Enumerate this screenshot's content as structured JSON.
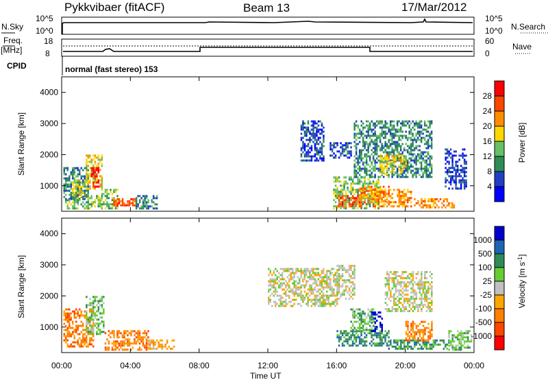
{
  "header": {
    "radar": "Pykkvibaer (fitACF)",
    "beam": "Beam 13",
    "date": "17/Mar/2012"
  },
  "top_panels": {
    "nsky_label": "N.Sky",
    "nsearch_label": "N.Search",
    "nsky_ticks": [
      "10^5",
      "10^0"
    ],
    "nsearch_ticks": [
      "10^5",
      "10^0"
    ],
    "freq_label": "Freq.",
    "freq_unit": "[MHz]",
    "freq_ticks": [
      "18",
      "8"
    ],
    "nave_label": "Nave",
    "nave_ticks": [
      "60",
      "0"
    ],
    "cpid_label": "CPID",
    "cpid_text": "normal (fast stereo) 153"
  },
  "chart_data": [
    {
      "type": "heatmap",
      "name": "power",
      "ylabel": "Slant Range [km]",
      "xlabel": "",
      "x_ticks": [
        "00:00",
        "04:00",
        "08:00",
        "12:00",
        "16:00",
        "20:00",
        "00:00"
      ],
      "xlim_hours": [
        0,
        24
      ],
      "y_ticks": [
        "1000",
        "2000",
        "3000",
        "4000"
      ],
      "ylim": [
        180,
        4500
      ],
      "colorbar": {
        "label": "Power [dB]",
        "ticks": [
          "4",
          "8",
          "12",
          "16",
          "20",
          "24",
          "28"
        ],
        "colors": [
          "#0000ff",
          "#2040c0",
          "#2e8b57",
          "#66c066",
          "#ffd700",
          "#ff8c00",
          "#ff4500",
          "#ff0000"
        ]
      },
      "regions": [
        {
          "t": [
            0.1,
            1.5
          ],
          "r": [
            600,
            1600
          ],
          "level": 2
        },
        {
          "t": [
            0.6,
            1.3
          ],
          "r": [
            700,
            1200
          ],
          "level": 4
        },
        {
          "t": [
            0.2,
            2.3
          ],
          "r": [
            250,
            700
          ],
          "level": 3
        },
        {
          "t": [
            1.4,
            2.3
          ],
          "r": [
            900,
            2000
          ],
          "level": 4
        },
        {
          "t": [
            1.7,
            2.1
          ],
          "r": [
            1000,
            1600
          ],
          "level": 7
        },
        {
          "t": [
            2.3,
            3.2
          ],
          "r": [
            300,
            900
          ],
          "level": 3
        },
        {
          "t": [
            3.0,
            4.3
          ],
          "r": [
            350,
            600
          ],
          "level": 6
        },
        {
          "t": [
            4.3,
            5.5
          ],
          "r": [
            300,
            700
          ],
          "level": 2
        },
        {
          "t": [
            13.9,
            15.2
          ],
          "r": [
            1800,
            3100
          ],
          "level": 1
        },
        {
          "t": [
            15.6,
            16.8
          ],
          "r": [
            1900,
            2400
          ],
          "level": 1
        },
        {
          "t": [
            15.8,
            18.4
          ],
          "r": [
            300,
            1300
          ],
          "level": 3
        },
        {
          "t": [
            16.0,
            17.8
          ],
          "r": [
            350,
            700
          ],
          "level": 6
        },
        {
          "t": [
            17.3,
            19.0
          ],
          "r": [
            500,
            1000
          ],
          "level": 5
        },
        {
          "t": [
            17.0,
            21.5
          ],
          "r": [
            1300,
            3100
          ],
          "level": 2
        },
        {
          "t": [
            18.5,
            20.0
          ],
          "r": [
            1400,
            2000
          ],
          "level": 4
        },
        {
          "t": [
            18.0,
            20.3
          ],
          "r": [
            350,
            900
          ],
          "level": 5
        },
        {
          "t": [
            20.5,
            22.8
          ],
          "r": [
            300,
            600
          ],
          "level": 5
        },
        {
          "t": [
            22.3,
            23.5
          ],
          "r": [
            900,
            2200
          ],
          "level": 1
        }
      ]
    },
    {
      "type": "heatmap",
      "name": "velocity",
      "ylabel": "Slant Range [km]",
      "xlabel": "Time UT",
      "x_ticks": [
        "00:00",
        "04:00",
        "08:00",
        "12:00",
        "16:00",
        "20:00",
        "00:00"
      ],
      "xlim_hours": [
        0,
        24
      ],
      "y_ticks": [
        "1000",
        "2000",
        "3000",
        "4000"
      ],
      "ylim": [
        180,
        4500
      ],
      "colorbar": {
        "label": "Velocity [m s",
        "label_sup": "-1",
        "label_end": "]",
        "ticks": [
          "1000",
          "500",
          "100",
          "25",
          "-25",
          "-100",
          "-500",
          "-1000"
        ],
        "colors": [
          "#0000cd",
          "#1e64b4",
          "#2e8b57",
          "#66cc33",
          "#c0c0c0",
          "#ffa500",
          "#ff7f00",
          "#ff4500",
          "#ff0000"
        ]
      },
      "regions": [
        {
          "t": [
            0.1,
            1.8
          ],
          "r": [
            400,
            1600
          ],
          "level": 6
        },
        {
          "t": [
            1.4,
            2.4
          ],
          "r": [
            800,
            2000
          ],
          "level": 3
        },
        {
          "t": [
            2.5,
            5.0
          ],
          "r": [
            300,
            900
          ],
          "level": 6
        },
        {
          "t": [
            5.0,
            6.5
          ],
          "r": [
            300,
            600
          ],
          "level": 5
        },
        {
          "t": [
            12.0,
            16.0
          ],
          "r": [
            1700,
            2900
          ],
          "level": 4
        },
        {
          "t": [
            16.0,
            17.0
          ],
          "r": [
            1900,
            3000
          ],
          "level": 4
        },
        {
          "t": [
            16.0,
            19.0
          ],
          "r": [
            400,
            900
          ],
          "level": 2
        },
        {
          "t": [
            16.8,
            18.2
          ],
          "r": [
            900,
            1600
          ],
          "level": 3
        },
        {
          "t": [
            18.0,
            18.6
          ],
          "r": [
            900,
            1500
          ],
          "level": 0
        },
        {
          "t": [
            18.8,
            21.5
          ],
          "r": [
            1500,
            2800
          ],
          "level": 4
        },
        {
          "t": [
            19.0,
            22.5
          ],
          "r": [
            300,
            600
          ],
          "level": 2
        },
        {
          "t": [
            20.0,
            21.5
          ],
          "r": [
            600,
            1200
          ],
          "level": 6
        },
        {
          "t": [
            22.5,
            23.8
          ],
          "r": [
            300,
            900
          ],
          "level": 3
        }
      ]
    }
  ]
}
